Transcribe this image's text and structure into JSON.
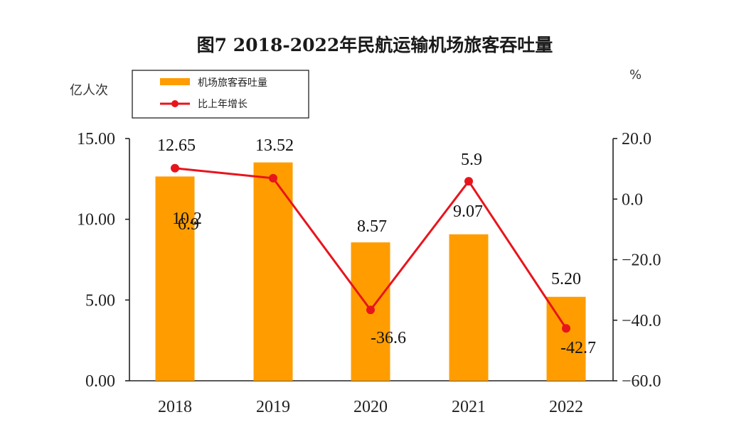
{
  "chart_data": {
    "type": "bar",
    "title": "图7 2018-2022年民航运输机场旅客吞吐量",
    "categories": [
      "2018",
      "2019",
      "2020",
      "2021",
      "2022"
    ],
    "y_left_label": "亿人次",
    "y_right_label": "%",
    "y_left_ticks": [
      "0.00",
      "5.00",
      "10.00",
      "15.00"
    ],
    "y_right_ticks": [
      "-60.0",
      "-40.0",
      "-20.0",
      "0.0",
      "20.0"
    ],
    "y_left_range": [
      0,
      15
    ],
    "y_right_range": [
      -60,
      20
    ],
    "grid": false,
    "legend_position": "top-left",
    "colors": {
      "bar": "#FF9D00",
      "line": "#E8141C"
    },
    "series": [
      {
        "name": "机场旅客吞吐量",
        "type": "bar",
        "axis": "left",
        "values": [
          12.65,
          13.52,
          8.57,
          9.07,
          5.2
        ],
        "labels": [
          "12.65",
          "13.52",
          "8.57",
          "9.07",
          "5.20"
        ]
      },
      {
        "name": "比上年增长",
        "type": "line",
        "axis": "right",
        "values": [
          10.2,
          6.9,
          -36.6,
          5.9,
          -42.7
        ],
        "labels": [
          "10.2",
          "6.9",
          "-36.6",
          "5.9",
          "-42.7"
        ]
      }
    ]
  }
}
